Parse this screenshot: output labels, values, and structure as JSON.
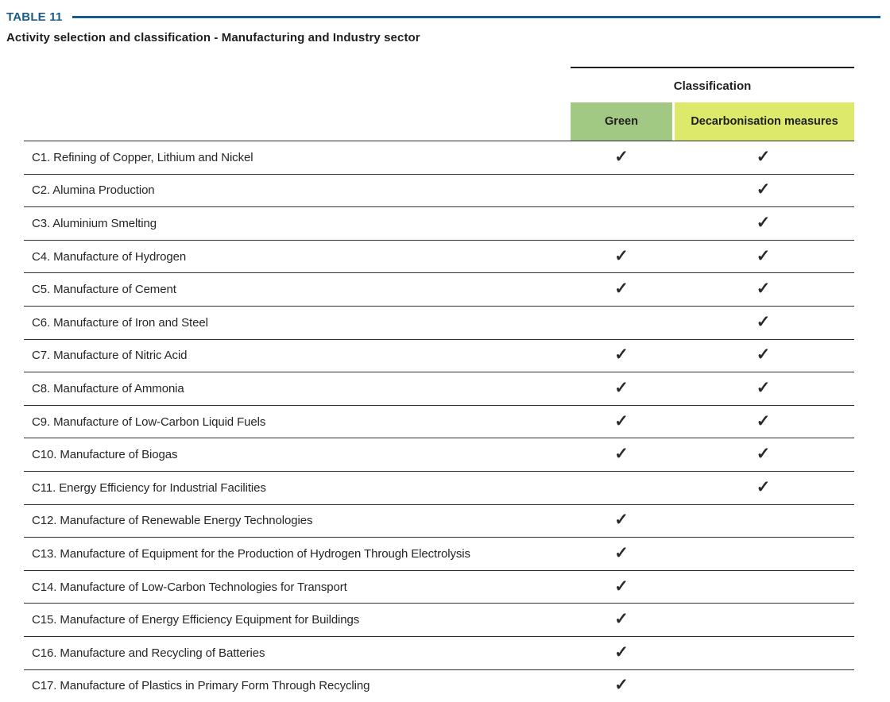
{
  "header": {
    "table_tag": "TABLE 11",
    "title": "Activity selection and classification - Manufacturing and Industry sector"
  },
  "colors": {
    "accent_blue": "#1a5a8a",
    "green_header_bg": "#a2c983",
    "decarbonisation_header_bg": "#dde96b"
  },
  "table": {
    "group_header": "Classification",
    "columns": {
      "green": "Green",
      "decarbonisation": "Decarbonisation measures"
    },
    "check_glyph": "✓",
    "rows": [
      {
        "label": "C1. Refining of Copper, Lithium and Nickel",
        "green": "✓",
        "decarbonisation": "✓"
      },
      {
        "label": "C2. Alumina Production",
        "green": "",
        "decarbonisation": "✓"
      },
      {
        "label": "C3. Aluminium Smelting",
        "green": "",
        "decarbonisation": "✓"
      },
      {
        "label": "C4. Manufacture of Hydrogen",
        "green": "✓",
        "decarbonisation": "✓"
      },
      {
        "label": "C5. Manufacture of Cement",
        "green": "✓",
        "decarbonisation": "✓"
      },
      {
        "label": "C6. Manufacture of Iron and Steel",
        "green": "",
        "decarbonisation": "✓"
      },
      {
        "label": "C7. Manufacture of Nitric Acid",
        "green": "✓",
        "decarbonisation": "✓"
      },
      {
        "label": "C8. Manufacture of Ammonia",
        "green": "✓",
        "decarbonisation": "✓"
      },
      {
        "label": "C9. Manufacture of Low-Carbon Liquid Fuels",
        "green": "✓",
        "decarbonisation": "✓"
      },
      {
        "label": "C10. Manufacture of Biogas",
        "green": "✓",
        "decarbonisation": "✓"
      },
      {
        "label": "C11. Energy Efficiency for Industrial Facilities",
        "green": "",
        "decarbonisation": "✓"
      },
      {
        "label": "C12. Manufacture of Renewable Energy Technologies",
        "green": "✓",
        "decarbonisation": ""
      },
      {
        "label": "C13. Manufacture of Equipment for the Production of Hydrogen Through Electrolysis",
        "green": "✓",
        "decarbonisation": ""
      },
      {
        "label": "C14. Manufacture of Low-Carbon Technologies for Transport",
        "green": "✓",
        "decarbonisation": ""
      },
      {
        "label": "C15. Manufacture of Energy Efficiency Equipment for Buildings",
        "green": "✓",
        "decarbonisation": ""
      },
      {
        "label": "C16. Manufacture and Recycling of Batteries",
        "green": "✓",
        "decarbonisation": ""
      },
      {
        "label": "C17. Manufacture of Plastics in Primary Form Through Recycling",
        "green": "✓",
        "decarbonisation": ""
      }
    ]
  }
}
